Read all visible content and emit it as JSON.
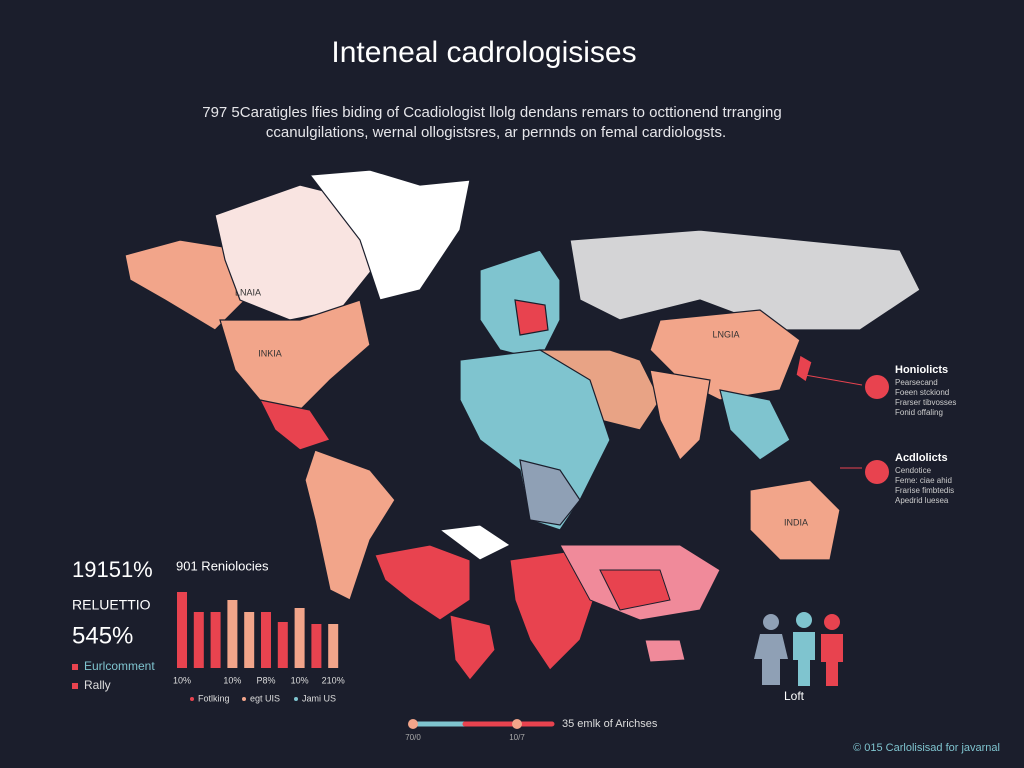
{
  "header": {
    "title": "Inteneal cadrologisises",
    "subtitle_lines": [
      "797 5Caratigles lfies biding of Ccadiologist llolg dendans remars to octtionend trranging",
      "ccanulgilations, wernal ollogistsres, ar pernnds on femal cardiologsts."
    ]
  },
  "map_labels": [
    "LNAIA",
    "INKIA",
    "LNGIA",
    "INDIA"
  ],
  "stats": {
    "big_value": "19151%",
    "label": "RELUETTIO",
    "second_value": "545%",
    "legend": [
      {
        "name": "Eurlcomment",
        "color": "#e8434f"
      },
      {
        "name": "Rally",
        "color": "#e8434f"
      }
    ]
  },
  "chart_data": {
    "type": "bar",
    "title": "901 Reniolocies",
    "categories": [
      "10%",
      null,
      null,
      "10%",
      null,
      "P8%",
      null,
      "10%",
      null,
      "210%"
    ],
    "values": [
      76,
      56,
      56,
      68,
      56,
      56,
      46,
      60,
      44,
      44
    ],
    "colors": [
      "#e8434f",
      "#e8434f",
      "#e8434f",
      "#f2a58a",
      "#f2a58a",
      "#e8434f",
      "#e8434f",
      "#f2a58a",
      "#e8434f",
      "#f2a58a"
    ],
    "legend": [
      {
        "name": "Fotlking",
        "color": "#e8434f"
      },
      {
        "name": "egt UIS",
        "color": "#f2a58a"
      },
      {
        "name": "Jami US",
        "color": "#7fc4cf"
      }
    ]
  },
  "callouts": [
    {
      "title": "Honiolicts",
      "lines": [
        "Pearsecand",
        "Foeen stckiond",
        "Frarser tibvosses",
        "Fonid offaling"
      ]
    },
    {
      "title": "Acdlolicts",
      "lines": [
        "Cendotice",
        "Feme: ciae ahid",
        "Frarise fimbtedis",
        "Apedrid luesea"
      ]
    }
  ],
  "people_label": "Loft",
  "slider": {
    "left_label": "70/0",
    "right_label": "10/7",
    "caption": "35 emlk of Arichses"
  },
  "footer": "© 015 Carlolisisad for javarnal"
}
